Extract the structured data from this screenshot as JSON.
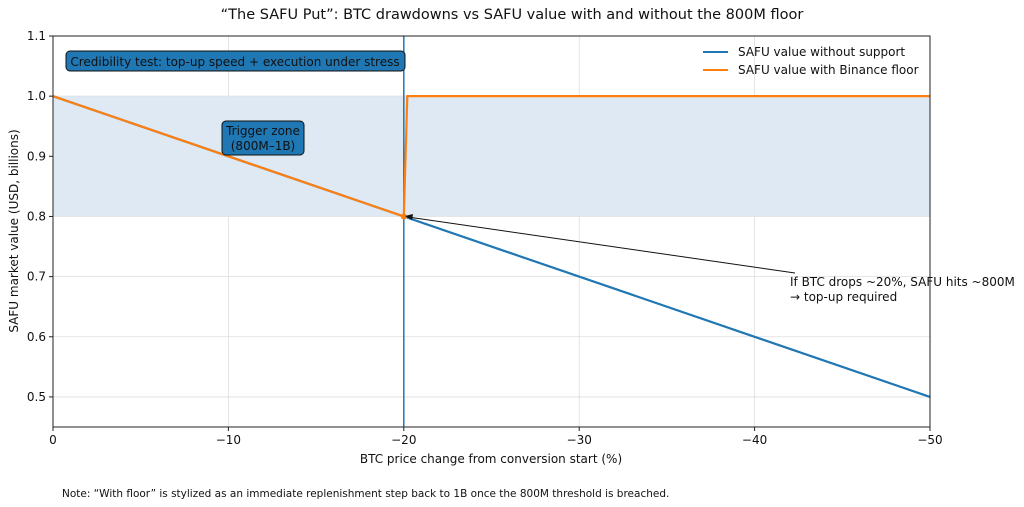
{
  "chart_data": {
    "type": "line",
    "title": "“The SAFU Put”: BTC drawdowns vs SAFU value with and without the 800M floor",
    "xlabel": "BTC price change from conversion start (%)",
    "ylabel": "SAFU market value (USD, billions)",
    "xlim": [
      0,
      -50
    ],
    "ylim": [
      0.45,
      1.1
    ],
    "x_inverted": true,
    "grid": true,
    "xticks": [
      0,
      -10,
      -20,
      -30,
      -40,
      -50
    ],
    "xtick_labels": [
      "0",
      "−10",
      "−20",
      "−30",
      "−40",
      "−50"
    ],
    "yticks": [
      0.5,
      0.6,
      0.7,
      0.8,
      0.9,
      1.0,
      1.1
    ],
    "ytick_labels": [
      "0.5",
      "0.6",
      "0.7",
      "0.8",
      "0.9",
      "1.0",
      "1.1"
    ],
    "legend_position": "top-right",
    "series": [
      {
        "name": "SAFU value without support",
        "color": "#1f77b4",
        "x": [
          0,
          -50
        ],
        "y": [
          1.0,
          0.5
        ]
      },
      {
        "name": "SAFU value with Binance floor",
        "color": "#ff7f0e",
        "x": [
          0,
          -20,
          -20.2,
          -50
        ],
        "y": [
          1.0,
          0.8,
          1.0,
          1.0
        ]
      }
    ],
    "shaded_band": {
      "y": [
        0.8,
        1.0
      ],
      "color": "#dce8f3"
    },
    "vertical_line": {
      "x": -20,
      "color": "#1f77b4"
    },
    "annotations": {
      "credibility": "Credibility test: top-up speed + execution under stress",
      "trigger_line1": "Trigger zone",
      "trigger_line2": "(800M–1B)",
      "arrow_line1": "If BTC drops ~20%, SAFU hits ~800M",
      "arrow_line2": "→ top-up required",
      "arrow_point": {
        "x": -20,
        "y": 0.8
      }
    },
    "note": "Note: “With floor” is stylized as an immediate replenishment step back to 1B once the 800M threshold is breached."
  }
}
